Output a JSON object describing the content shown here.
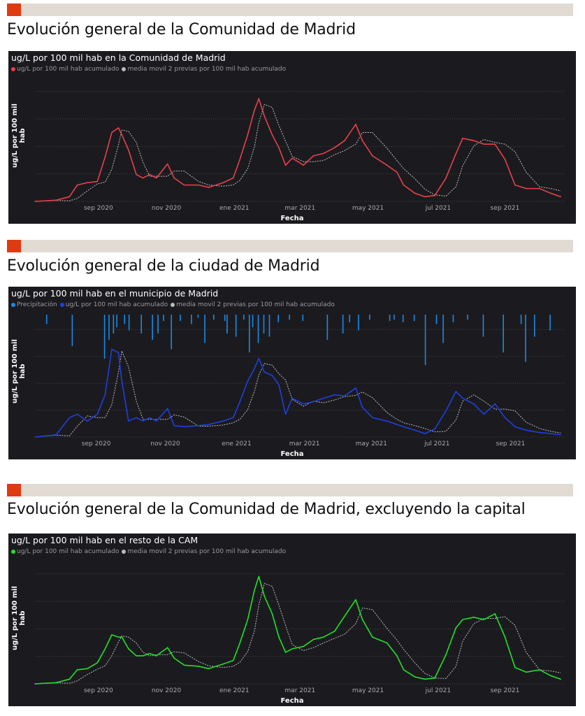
{
  "sections": [
    {
      "heading": "Evolución general de la Comunidad de Madrid"
    },
    {
      "heading": "Evolución general de la ciudad de Madrid"
    },
    {
      "heading": "Evolución general de la Comunidad de Madrid, excluyendo la capital"
    }
  ],
  "chart_data": [
    {
      "type": "line",
      "title": "ug/L por 100 mil hab en la Comunidad de Madrid",
      "legend": [
        "ug/L por 100 mil hab acumulado",
        "media movil 2 previas por 100 mil hab acumulado"
      ],
      "colors": [
        "#e8404c",
        "#bbbbbb"
      ],
      "xlabel": "Fecha",
      "ylabel": "ug/L por 100 mil hab",
      "start_date": "2020-07-06",
      "x_ticks": [
        {
          "day": 57,
          "label": "sep 2020"
        },
        {
          "day": 118,
          "label": "nov 2020"
        },
        {
          "day": 179,
          "label": "ene 2021"
        },
        {
          "day": 238,
          "label": "mar 2021"
        },
        {
          "day": 299,
          "label": "may 2021"
        },
        {
          "day": 362,
          "label": "jul 2021"
        },
        {
          "day": 422,
          "label": "sep 2021"
        }
      ],
      "xlim": [
        0,
        475
      ],
      "ylim": [
        0,
        100
      ],
      "grid": true,
      "days": [
        0,
        19,
        31,
        38,
        47,
        56,
        63,
        69,
        75,
        78,
        84,
        91,
        97,
        103,
        109,
        119,
        125,
        134,
        147,
        156,
        169,
        178,
        184,
        191,
        197,
        201,
        206,
        213,
        219,
        225,
        231,
        241,
        250,
        259,
        269,
        278,
        288,
        294,
        303,
        316,
        325,
        331,
        341,
        350,
        359,
        369,
        378,
        384,
        394,
        403,
        413,
        422,
        431,
        441,
        453,
        463,
        472
      ],
      "values": [
        0,
        1,
        4,
        14,
        16,
        17,
        38,
        59,
        63,
        57,
        44,
        23,
        20,
        23,
        20,
        32,
        20,
        14,
        14,
        12,
        16,
        20,
        36,
        57,
        78,
        88,
        73,
        57,
        46,
        31,
        37,
        31,
        39,
        41,
        46,
        52,
        66,
        52,
        39,
        31,
        25,
        14,
        7,
        4,
        5,
        20,
        41,
        54,
        52,
        49,
        49,
        36,
        14,
        11,
        11,
        7,
        4
      ]
    },
    {
      "type": "line",
      "title": "ug/L por 100 mil hab en el municipio de Madrid",
      "legend": [
        "Precipitación",
        "ug/L por 100 mil hab acumulado",
        "media movil 2 previas por 100 mil hab acumulado"
      ],
      "colors": [
        "#1e88e5",
        "#1f3fe0",
        "#bbbbbb"
      ],
      "xlabel": "Fecha",
      "ylabel": "ug/L por 100 mil hab",
      "start_date": "2020-07-06",
      "x_ticks": [
        {
          "day": 55,
          "label": "sep 2020"
        },
        {
          "day": 117,
          "label": "nov 2020"
        },
        {
          "day": 181,
          "label": "ene 2021"
        },
        {
          "day": 242,
          "label": "mar 2021"
        },
        {
          "day": 302,
          "label": "may 2021"
        },
        {
          "day": 361,
          "label": "jul 2021"
        },
        {
          "day": 427,
          "label": "sep 2021"
        }
      ],
      "xlim": [
        0,
        475
      ],
      "ylim": [
        0,
        100
      ],
      "grid": true,
      "days": [
        0,
        19,
        31,
        38,
        47,
        56,
        63,
        69,
        75,
        78,
        84,
        91,
        97,
        103,
        109,
        119,
        125,
        134,
        147,
        156,
        169,
        178,
        184,
        191,
        197,
        201,
        206,
        213,
        219,
        225,
        231,
        241,
        250,
        259,
        269,
        278,
        288,
        294,
        303,
        316,
        325,
        331,
        341,
        350,
        359,
        369,
        378,
        384,
        394,
        403,
        413,
        422,
        431,
        441,
        453,
        463,
        472
      ],
      "values": [
        0,
        2,
        17,
        20,
        14,
        20,
        37,
        77,
        74,
        49,
        14,
        17,
        14,
        17,
        14,
        25,
        10,
        9,
        10,
        11,
        14,
        17,
        31,
        49,
        60,
        69,
        57,
        54,
        46,
        20,
        34,
        29,
        31,
        34,
        37,
        36,
        43,
        26,
        17,
        14,
        11,
        9,
        6,
        3,
        7,
        23,
        40,
        34,
        29,
        20,
        29,
        17,
        9,
        6,
        4,
        3,
        2
      ],
      "precipitation": {
        "days": [
          10,
          33,
          62,
          66,
          70,
          73,
          80,
          84,
          95,
          105,
          110,
          115,
          122,
          130,
          140,
          146,
          152,
          160,
          170,
          172,
          180,
          187,
          192,
          195,
          200,
          205,
          210,
          218,
          228,
          240,
          262,
          276,
          282,
          290,
          300,
          318,
          322,
          330,
          340,
          350,
          360,
          366,
          375,
          388,
          402,
          420,
          436,
          440,
          448,
          462
        ],
        "values": [
          15,
          50,
          70,
          40,
          30,
          20,
          15,
          25,
          30,
          40,
          30,
          10,
          55,
          10,
          15,
          5,
          45,
          8,
          10,
          30,
          35,
          8,
          60,
          20,
          45,
          30,
          35,
          12,
          8,
          10,
          40,
          30,
          12,
          25,
          8,
          10,
          8,
          12,
          10,
          80,
          15,
          45,
          12,
          8,
          35,
          60,
          15,
          75,
          35,
          25
        ]
      }
    },
    {
      "type": "line",
      "title": "ug/L por 100 mil hab en el resto de la CAM",
      "legend": [
        "ug/L por 100 mil hab acumulado",
        "media movil 2 previas por 100 mil hab acumulado"
      ],
      "colors": [
        "#22e02a",
        "#bbbbbb"
      ],
      "xlabel": "Fecha",
      "ylabel": "ug/L por 100 mil hab",
      "start_date": "2020-07-06",
      "x_ticks": [
        {
          "day": 57,
          "label": "sep 2020"
        },
        {
          "day": 118,
          "label": "nov 2020"
        },
        {
          "day": 179,
          "label": "ene 2021"
        },
        {
          "day": 238,
          "label": "mar 2021"
        },
        {
          "day": 299,
          "label": "may 2021"
        },
        {
          "day": 362,
          "label": "jul 2021"
        },
        {
          "day": 422,
          "label": "sep 2021"
        }
      ],
      "xlim": [
        0,
        475
      ],
      "ylim": [
        0,
        100
      ],
      "grid": true,
      "days": [
        0,
        19,
        31,
        38,
        47,
        56,
        63,
        69,
        75,
        78,
        84,
        91,
        97,
        103,
        109,
        119,
        125,
        134,
        147,
        156,
        169,
        178,
        184,
        191,
        197,
        201,
        206,
        213,
        219,
        225,
        231,
        241,
        250,
        259,
        269,
        278,
        288,
        294,
        303,
        316,
        325,
        331,
        341,
        350,
        359,
        369,
        378,
        384,
        394,
        403,
        413,
        422,
        431,
        441,
        453,
        463,
        472
      ],
      "values": [
        0,
        1,
        4,
        12,
        13,
        18,
        30,
        42,
        40,
        40,
        30,
        24,
        24,
        26,
        24,
        31,
        22,
        16,
        15,
        13,
        17,
        20,
        35,
        55,
        80,
        92,
        75,
        60,
        40,
        27,
        30,
        32,
        38,
        40,
        45,
        58,
        72,
        55,
        40,
        35,
        24,
        12,
        6,
        4,
        5,
        25,
        48,
        55,
        57,
        55,
        60,
        40,
        14,
        10,
        12,
        7,
        4
      ]
    }
  ]
}
